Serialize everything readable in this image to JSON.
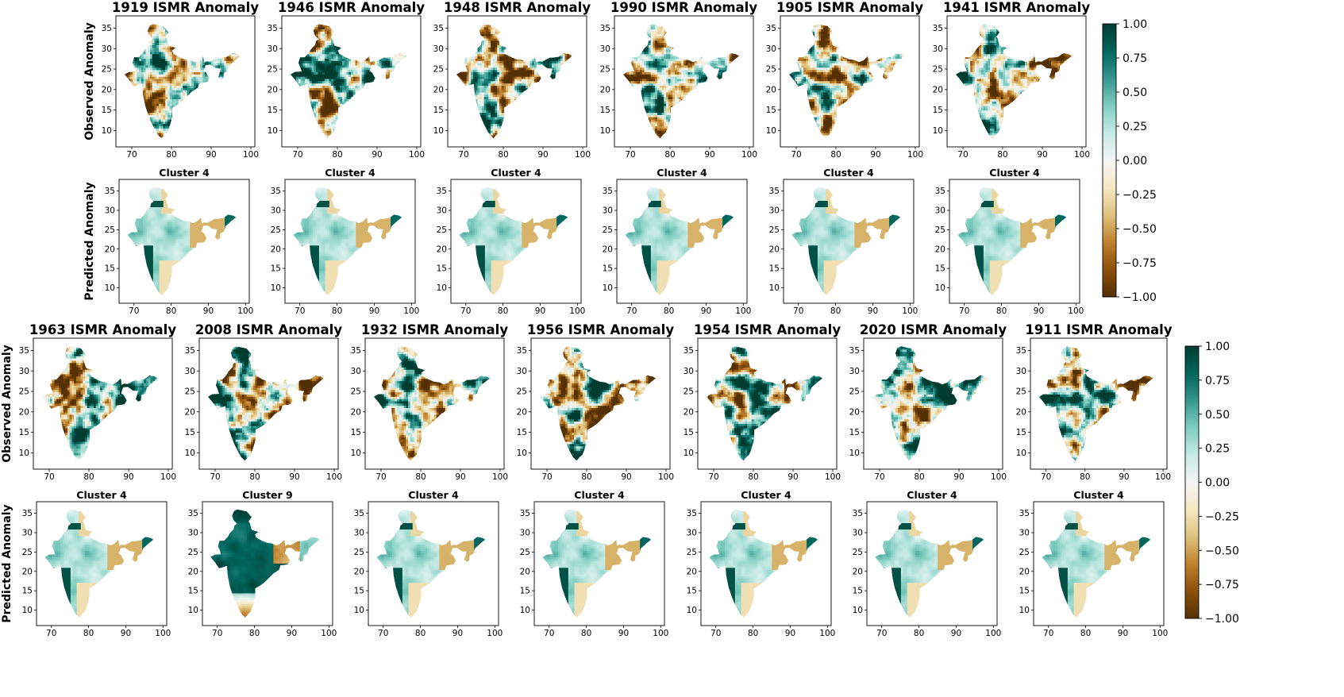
{
  "chart_data": [
    {
      "type": "heatmap",
      "row_labels": [
        "Observed Anomaly",
        "Predicted Anomaly"
      ],
      "panels": [
        {
          "title": "1919 ISMR Anomaly",
          "predicted_title": "Cluster 4"
        },
        {
          "title": "1946 ISMR Anomaly",
          "predicted_title": "Cluster 4"
        },
        {
          "title": "1948 ISMR Anomaly",
          "predicted_title": "Cluster 4"
        },
        {
          "title": "1990 ISMR Anomaly",
          "predicted_title": "Cluster 4"
        },
        {
          "title": "1905 ISMR Anomaly",
          "predicted_title": "Cluster 4"
        },
        {
          "title": "1941 ISMR Anomaly",
          "predicted_title": "Cluster 4"
        }
      ],
      "x_ticks": [
        "70",
        "80",
        "90",
        "100"
      ],
      "y_ticks": [
        "10",
        "15",
        "20",
        "25",
        "30",
        "35"
      ],
      "xlim": [
        66,
        101
      ],
      "ylim": [
        6,
        38
      ],
      "colorbar": {
        "ticks": [
          "1.00",
          "0.75",
          "0.50",
          "0.25",
          "0.00",
          "−0.25",
          "−0.50",
          "−0.75",
          "−1.00"
        ],
        "range": [
          -1,
          1
        ],
        "colors": [
          "#543005",
          "#8c510a",
          "#bf812d",
          "#dfc27d",
          "#f6e8c3",
          "#f5f5f5",
          "#c7eae5",
          "#80cdc1",
          "#35978f",
          "#01665e",
          "#003c30"
        ]
      }
    },
    {
      "type": "heatmap",
      "row_labels": [
        "Observed Anomaly",
        "Predicted Anomaly"
      ],
      "panels": [
        {
          "title": "1963 ISMR Anomaly",
          "predicted_title": "Cluster 4"
        },
        {
          "title": "2008 ISMR Anomaly",
          "predicted_title": "Cluster 9"
        },
        {
          "title": "1932 ISMR Anomaly",
          "predicted_title": "Cluster 4"
        },
        {
          "title": "1956 ISMR Anomaly",
          "predicted_title": "Cluster 4"
        },
        {
          "title": "1954 ISMR Anomaly",
          "predicted_title": "Cluster 4"
        },
        {
          "title": "2020 ISMR Anomaly",
          "predicted_title": "Cluster 4"
        },
        {
          "title": "1911 ISMR Anomaly",
          "predicted_title": "Cluster 4"
        }
      ],
      "x_ticks": [
        "70",
        "80",
        "90",
        "100"
      ],
      "y_ticks": [
        "10",
        "15",
        "20",
        "25",
        "30",
        "35"
      ],
      "xlim": [
        66,
        101
      ],
      "ylim": [
        6,
        38
      ],
      "colorbar": {
        "ticks": [
          "1.00",
          "0.75",
          "0.50",
          "0.25",
          "0.00",
          "−0.25",
          "−0.50",
          "−0.75",
          "−1.00"
        ],
        "range": [
          -1,
          1
        ],
        "colors": [
          "#543005",
          "#8c510a",
          "#bf812d",
          "#dfc27d",
          "#f6e8c3",
          "#f5f5f5",
          "#c7eae5",
          "#80cdc1",
          "#35978f",
          "#01665e",
          "#003c30"
        ]
      }
    }
  ]
}
